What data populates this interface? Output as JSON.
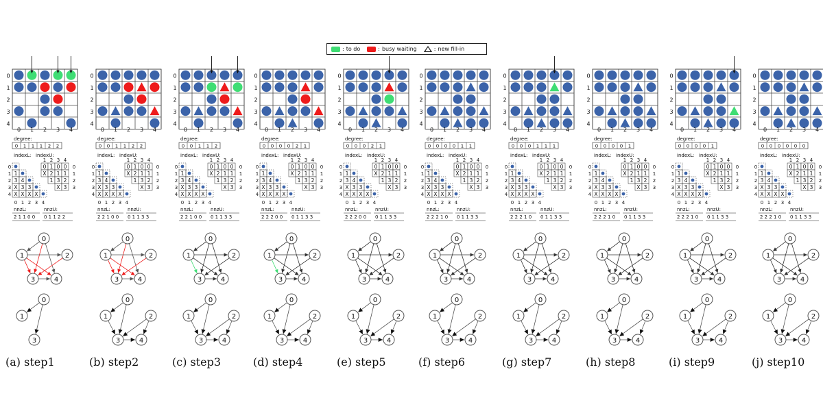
{
  "legend": {
    "todo": "to do",
    "busy": "busy waiting",
    "fill": "new fill-in",
    "colors": {
      "todo": "#3fdd74",
      "busy": "#ee1b1b",
      "blue": "#3b63a9"
    }
  },
  "labels": {
    "degree": "degree:",
    "indexL": "indexL:",
    "indexU": "indexU:",
    "nnzL": "nnzL:",
    "nnzU": "nnzU:",
    "x_mark": "X"
  },
  "axis_ticks": [
    "0",
    "1",
    "2",
    "3",
    "4"
  ],
  "indexU_table": [
    [
      "0",
      "1",
      "0",
      "0"
    ],
    [
      "X",
      "2",
      "1",
      "1"
    ],
    [
      "1",
      "3",
      "2"
    ],
    [
      "X",
      "3"
    ]
  ],
  "indexL_table": [
    [],
    [
      "1"
    ],
    [
      "3",
      "4"
    ],
    [
      "X",
      "3",
      "3"
    ],
    [
      "X",
      "X",
      "X",
      "X"
    ]
  ],
  "steps": [
    {
      "caption": "(a) step1",
      "degree": [
        "0",
        "1",
        "1",
        "1",
        "2",
        "2"
      ],
      "nnzL": "2 1 1 0 0",
      "nnzU": "0 1 1 2 2",
      "grid": [
        [
          "b",
          "g",
          "b",
          "g",
          "g"
        ],
        [
          "b",
          "b",
          "r",
          "b",
          "r"
        ],
        [
          "",
          "",
          "b",
          "r",
          ""
        ],
        [
          "b",
          "",
          "b",
          "b",
          ""
        ],
        [
          "",
          "b",
          "",
          "",
          "b"
        ]
      ],
      "arrows": [
        1,
        3,
        4
      ]
    },
    {
      "caption": "(b) step2",
      "degree": [
        "0",
        "0",
        "1",
        "1",
        "2",
        "2"
      ],
      "nnzL": "2 2 1 0 0",
      "nnzU": "0 1 1 3 3",
      "grid": [
        [
          "b",
          "b",
          "b",
          "b",
          "b"
        ],
        [
          "b",
          "b",
          "r",
          "t",
          "r"
        ],
        [
          "",
          "",
          "b",
          "r",
          ""
        ],
        [
          "b",
          "t",
          "b",
          "b",
          "t"
        ],
        [
          "",
          "b",
          "",
          "",
          "b"
        ]
      ],
      "arrows": []
    },
    {
      "caption": "(c) step3",
      "degree": [
        "0",
        "0",
        "1",
        "1",
        "2"
      ],
      "nnzL": "2 2 1 0 0",
      "nnzU": "0 1 1 3 3",
      "grid": [
        [
          "b",
          "b",
          "b",
          "b",
          "b"
        ],
        [
          "b",
          "b",
          "g",
          "t",
          "g"
        ],
        [
          "",
          "",
          "b",
          "r",
          ""
        ],
        [
          "b",
          "t",
          "b",
          "b",
          "t"
        ],
        [
          "",
          "b",
          "",
          "",
          "b"
        ]
      ],
      "arrows": [
        2,
        4
      ]
    },
    {
      "caption": "(d) step4",
      "degree": [
        "0",
        "0",
        "0",
        "0",
        "2",
        "1"
      ],
      "nnzL": "2 2 2 0 0",
      "nnzU": "0 1 1 3 3",
      "grid": [
        [
          "b",
          "b",
          "b",
          "b",
          "b"
        ],
        [
          "b",
          "b",
          "b",
          "t",
          "b"
        ],
        [
          "",
          "",
          "b",
          "r",
          ""
        ],
        [
          "b",
          "t",
          "b",
          "b",
          "t"
        ],
        [
          "",
          "b",
          "t",
          "",
          "b"
        ]
      ],
      "arrows": []
    },
    {
      "caption": "(e) step5",
      "degree": [
        "0",
        "0",
        "0",
        "2",
        "1"
      ],
      "nnzL": "2 2 2 0 0",
      "nnzU": "0 1 1 3 3",
      "grid": [
        [
          "b",
          "b",
          "b",
          "b",
          "b"
        ],
        [
          "b",
          "b",
          "b",
          "t",
          "b"
        ],
        [
          "",
          "",
          "b",
          "g",
          ""
        ],
        [
          "b",
          "t",
          "b",
          "b",
          "t"
        ],
        [
          "",
          "b",
          "t",
          "",
          "b"
        ]
      ],
      "arrows": [
        3
      ]
    },
    {
      "caption": "(f) step6",
      "degree": [
        "0",
        "0",
        "0",
        "0",
        "1",
        "1"
      ],
      "nnzL": "2 2 2 1 0",
      "nnzU": "0 1 1 3 3",
      "grid": [
        [
          "b",
          "b",
          "b",
          "b",
          "b"
        ],
        [
          "b",
          "b",
          "b",
          "t",
          "b"
        ],
        [
          "",
          "",
          "b",
          "b",
          ""
        ],
        [
          "b",
          "t",
          "b",
          "b",
          "t"
        ],
        [
          "",
          "b",
          "t",
          "b",
          "b"
        ]
      ],
      "arrows": []
    },
    {
      "caption": "(g) step7",
      "degree": [
        "0",
        "0",
        "0",
        "1",
        "1",
        "1"
      ],
      "nnzL": "2 2 2 1 0",
      "nnzU": "0 1 1 3 3",
      "grid": [
        [
          "b",
          "b",
          "b",
          "b",
          "b"
        ],
        [
          "b",
          "b",
          "b",
          "tg",
          "b"
        ],
        [
          "",
          "",
          "b",
          "b",
          ""
        ],
        [
          "b",
          "t",
          "b",
          "b",
          "t"
        ],
        [
          "",
          "b",
          "t",
          "b",
          "b"
        ]
      ],
      "arrows": [
        3
      ]
    },
    {
      "caption": "(h) step8",
      "degree": [
        "0",
        "0",
        "0",
        "0",
        "1"
      ],
      "nnzL": "2 2 2 1 0",
      "nnzU": "0 1 1 3 3",
      "grid": [
        [
          "b",
          "b",
          "b",
          "b",
          "b"
        ],
        [
          "b",
          "b",
          "b",
          "t",
          "b"
        ],
        [
          "",
          "",
          "b",
          "b",
          ""
        ],
        [
          "b",
          "t",
          "b",
          "b",
          "t"
        ],
        [
          "",
          "b",
          "t",
          "b",
          "b"
        ]
      ],
      "arrows": []
    },
    {
      "caption": "(i) step9",
      "degree": [
        "0",
        "0",
        "0",
        "0",
        "1"
      ],
      "nnzL": "2 2 2 1 0",
      "nnzU": "0 1 1 3 3",
      "grid": [
        [
          "b",
          "b",
          "b",
          "b",
          "b"
        ],
        [
          "b",
          "b",
          "b",
          "t",
          "b"
        ],
        [
          "",
          "",
          "b",
          "b",
          ""
        ],
        [
          "b",
          "t",
          "b",
          "b",
          "tg"
        ],
        [
          "",
          "b",
          "t",
          "b",
          "b"
        ]
      ],
      "arrows": [
        4
      ]
    },
    {
      "caption": "(j) step10",
      "degree": [
        "0",
        "0",
        "0",
        "0",
        "0",
        "0"
      ],
      "nnzL": "2 2 2 1 0",
      "nnzU": "0 1 1 3 3",
      "grid": [
        [
          "b",
          "b",
          "b",
          "b",
          "b"
        ],
        [
          "b",
          "b",
          "b",
          "t",
          "b"
        ],
        [
          "",
          "",
          "b",
          "b",
          ""
        ],
        [
          "b",
          "t",
          "b",
          "b",
          "t"
        ],
        [
          "",
          "b",
          "t",
          "b",
          "b"
        ]
      ],
      "arrows": []
    }
  ]
}
